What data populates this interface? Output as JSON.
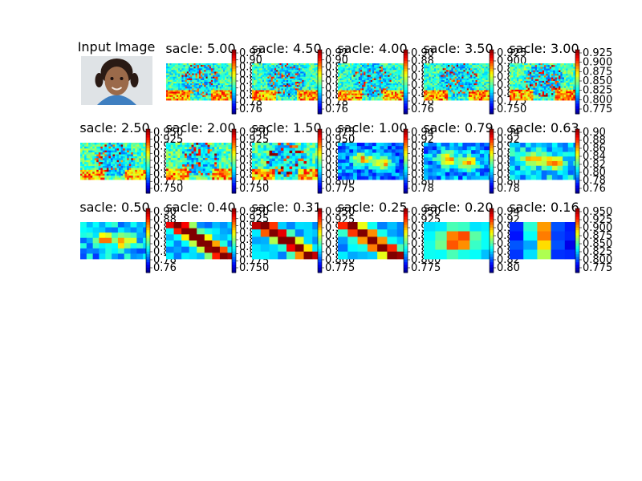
{
  "chart_data": {
    "type": "heatmap",
    "colormap": "jet",
    "input_panel": {
      "title": "Input Image"
    },
    "panels": [
      {
        "title": "sacle: 5.00",
        "ticks": [
          "0.92",
          "0.90",
          "0.88",
          "0.86",
          "0.84",
          "0.82",
          "0.80",
          "0.78",
          "0.76"
        ],
        "resolution": [
          40,
          22
        ],
        "pattern": "face",
        "base": 0.3
      },
      {
        "title": "sacle: 4.50",
        "ticks": [
          "0.92",
          "0.90",
          "0.88",
          "0.86",
          "0.84",
          "0.82",
          "0.80",
          "0.78",
          "0.76"
        ],
        "resolution": [
          40,
          22
        ],
        "pattern": "face",
        "base": 0.3
      },
      {
        "title": "sacle: 4.00",
        "ticks": [
          "0.90",
          "0.88",
          "0.86",
          "0.84",
          "0.82",
          "0.80",
          "0.78",
          "0.76"
        ],
        "resolution": [
          40,
          22
        ],
        "pattern": "face",
        "base": 0.3
      },
      {
        "title": "sacle: 3.50",
        "ticks": [
          "0.925",
          "0.900",
          "0.875",
          "0.850",
          "0.825",
          "0.800",
          "0.775",
          "0.750"
        ],
        "resolution": [
          40,
          22
        ],
        "pattern": "face",
        "base": 0.3
      },
      {
        "title": "sacle: 3.00",
        "ticks": [
          "0.925",
          "0.900",
          "0.875",
          "0.850",
          "0.825",
          "0.800",
          "0.775"
        ],
        "resolution": [
          38,
          21
        ],
        "pattern": "face",
        "base": 0.32
      },
      {
        "title": "sacle: 2.50",
        "ticks": [
          "0.950",
          "0.925",
          "0.900",
          "0.875",
          "0.850",
          "0.825",
          "0.800",
          "0.775",
          "0.750"
        ],
        "resolution": [
          34,
          19
        ],
        "pattern": "face",
        "base": 0.32
      },
      {
        "title": "sacle: 2.00",
        "ticks": [
          "0.950",
          "0.925",
          "0.900",
          "0.875",
          "0.850",
          "0.825",
          "0.800",
          "0.775",
          "0.750"
        ],
        "resolution": [
          30,
          17
        ],
        "pattern": "face",
        "base": 0.33
      },
      {
        "title": "sacle: 1.50",
        "ticks": [
          "0.975",
          "0.950",
          "0.925",
          "0.900",
          "0.875",
          "0.850",
          "0.825",
          "0.800",
          "0.775"
        ],
        "resolution": [
          24,
          14
        ],
        "pattern": "face",
        "base": 0.3
      },
      {
        "title": "sacle: 1.00",
        "ticks": [
          "0.94",
          "0.92",
          "0.90",
          "0.88",
          "0.86",
          "0.84",
          "0.82",
          "0.80",
          "0.78"
        ],
        "resolution": [
          18,
          11
        ],
        "pattern": "blob",
        "base": 0.4
      },
      {
        "title": "sacle: 0.79",
        "ticks": [
          "0.94",
          "0.92",
          "0.90",
          "0.88",
          "0.86",
          "0.84",
          "0.82",
          "0.80",
          "0.78"
        ],
        "resolution": [
          16,
          10
        ],
        "pattern": "blob",
        "base": 0.45
      },
      {
        "title": "sacle: 0.63",
        "ticks": [
          "0.90",
          "0.88",
          "0.86",
          "0.84",
          "0.82",
          "0.80",
          "0.78",
          "0.76"
        ],
        "resolution": [
          13,
          8
        ],
        "pattern": "blob",
        "base": 0.55
      },
      {
        "title": "sacle: 0.50",
        "ticks": [
          "0.90",
          "0.88",
          "0.86",
          "0.84",
          "0.82",
          "0.80",
          "0.78",
          "0.76"
        ],
        "resolution": [
          11,
          7
        ],
        "pattern": "blob",
        "base": 0.5
      },
      {
        "title": "sacle: 0.40",
        "ticks": [
          "0.950",
          "0.925",
          "0.900",
          "0.875",
          "0.850",
          "0.825",
          "0.800",
          "0.775",
          "0.750"
        ],
        "resolution": [
          9,
          6
        ],
        "pattern": "diag",
        "base": 0.45
      },
      {
        "title": "sacle: 0.31",
        "ticks": [
          "0.950",
          "0.925",
          "0.900",
          "0.875",
          "0.850",
          "0.825",
          "0.800",
          "0.775"
        ],
        "resolution": [
          8,
          5
        ],
        "pattern": "diag",
        "base": 0.45
      },
      {
        "title": "sacle: 0.25",
        "ticks": [
          "0.950",
          "0.925",
          "0.900",
          "0.875",
          "0.850",
          "0.825",
          "0.800",
          "0.775"
        ],
        "resolution": [
          7,
          5
        ],
        "pattern": "diag",
        "base": 0.5
      },
      {
        "title": "sacle: 0.20",
        "ticks": [
          "0.94",
          "0.92",
          "0.90",
          "0.88",
          "0.86",
          "0.84",
          "0.82",
          "0.80"
        ],
        "resolution": [
          6,
          4
        ],
        "pattern": "center",
        "base": 0.45
      },
      {
        "title": "sacle: 0.16",
        "ticks": [
          "0.950",
          "0.925",
          "0.900",
          "0.875",
          "0.850",
          "0.825",
          "0.800",
          "0.775"
        ],
        "resolution": [
          5,
          4
        ],
        "pattern": "vertical",
        "base": 0.35
      }
    ]
  }
}
